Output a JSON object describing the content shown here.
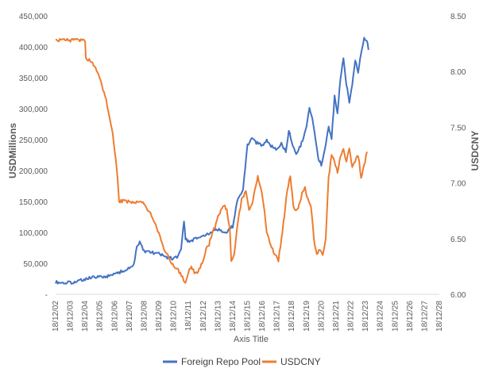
{
  "chart_data": {
    "type": "line",
    "title": "",
    "xlabel": "Axis Title",
    "ylabel_left": "USDMillions",
    "ylabel_right": "USDCNY",
    "grid": false,
    "legend_position": "bottom",
    "x_ticks": [
      "18/12/02",
      "18/12/03",
      "18/12/04",
      "18/12/05",
      "18/12/06",
      "18/12/07",
      "18/12/08",
      "18/12/09",
      "18/12/10",
      "18/12/11",
      "18/12/12",
      "18/12/13",
      "18/12/14",
      "18/12/15",
      "18/12/16",
      "18/12/17",
      "18/12/18",
      "18/12/19",
      "18/12/20",
      "18/12/21",
      "18/12/22",
      "18/12/23",
      "18/12/24",
      "18/12/25",
      "18/12/26",
      "18/12/27",
      "18/12/28"
    ],
    "y_left": {
      "min": 0,
      "max": 450000,
      "ticks": [
        "-",
        "50,000",
        "100,000",
        "150,000",
        "200,000",
        "250,000",
        "300,000",
        "350,000",
        "400,000",
        "450,000"
      ]
    },
    "y_right": {
      "min": 6.0,
      "max": 8.5,
      "ticks": [
        "6.00",
        "6.50",
        "7.00",
        "7.50",
        "8.00",
        "8.50"
      ]
    },
    "series": [
      {
        "name": "Foreign Repo Pool",
        "axis": "left",
        "color": "#4472C4",
        "points": [
          [
            0,
            20000
          ],
          [
            0.5,
            18000
          ],
          [
            1,
            19000
          ],
          [
            1.5,
            21000
          ],
          [
            2,
            25000
          ],
          [
            2.5,
            27000
          ],
          [
            3,
            28000
          ],
          [
            3.5,
            29000
          ],
          [
            4,
            33000
          ],
          [
            4.5,
            37000
          ],
          [
            5,
            42000
          ],
          [
            5.3,
            48000
          ],
          [
            5.5,
            75000
          ],
          [
            5.7,
            85000
          ],
          [
            6,
            70000
          ],
          [
            6.5,
            68000
          ],
          [
            7,
            65000
          ],
          [
            7.5,
            60000
          ],
          [
            8,
            58000
          ],
          [
            8.3,
            60000
          ],
          [
            8.5,
            75000
          ],
          [
            8.7,
            120000
          ],
          [
            8.8,
            90000
          ],
          [
            9,
            85000
          ],
          [
            9.5,
            90000
          ],
          [
            10,
            95000
          ],
          [
            10.5,
            100000
          ],
          [
            11,
            105000
          ],
          [
            11.5,
            100000
          ],
          [
            12,
            110000
          ],
          [
            12.3,
            150000
          ],
          [
            12.7,
            170000
          ],
          [
            13,
            240000
          ],
          [
            13.3,
            255000
          ],
          [
            13.6,
            245000
          ],
          [
            14,
            240000
          ],
          [
            14.3,
            250000
          ],
          [
            14.6,
            240000
          ],
          [
            15,
            235000
          ],
          [
            15.3,
            245000
          ],
          [
            15.6,
            230000
          ],
          [
            15.8,
            265000
          ],
          [
            16,
            245000
          ],
          [
            16.3,
            225000
          ],
          [
            16.6,
            240000
          ],
          [
            17,
            270000
          ],
          [
            17.2,
            300000
          ],
          [
            17.4,
            285000
          ],
          [
            17.6,
            250000
          ],
          [
            17.8,
            220000
          ],
          [
            18,
            210000
          ],
          [
            18.3,
            240000
          ],
          [
            18.5,
            270000
          ],
          [
            18.7,
            250000
          ],
          [
            18.9,
            320000
          ],
          [
            19.1,
            290000
          ],
          [
            19.3,
            350000
          ],
          [
            19.5,
            380000
          ],
          [
            19.7,
            340000
          ],
          [
            19.9,
            310000
          ],
          [
            20.1,
            340000
          ],
          [
            20.3,
            380000
          ],
          [
            20.5,
            360000
          ],
          [
            20.7,
            390000
          ],
          [
            20.9,
            415000
          ],
          [
            21.1,
            410000
          ],
          [
            21.2,
            395000
          ]
        ]
      },
      {
        "name": "USDCNY",
        "axis": "right",
        "color": "#ED7D31",
        "points": [
          [
            0,
            8.28
          ],
          [
            2,
            8.28
          ],
          [
            2.05,
            8.12
          ],
          [
            2.5,
            8.08
          ],
          [
            3,
            7.95
          ],
          [
            3.5,
            7.7
          ],
          [
            3.8,
            7.5
          ],
          [
            4,
            7.3
          ],
          [
            4.2,
            7.05
          ],
          [
            4.3,
            6.83
          ],
          [
            4.5,
            6.84
          ],
          [
            5,
            6.83
          ],
          [
            5.5,
            6.83
          ],
          [
            6,
            6.82
          ],
          [
            6.3,
            6.75
          ],
          [
            6.7,
            6.65
          ],
          [
            7,
            6.55
          ],
          [
            7.3,
            6.42
          ],
          [
            7.6,
            6.35
          ],
          [
            7.8,
            6.28
          ],
          [
            8,
            6.26
          ],
          [
            8.3,
            6.22
          ],
          [
            8.6,
            6.15
          ],
          [
            8.8,
            6.1
          ],
          [
            9,
            6.2
          ],
          [
            9.2,
            6.25
          ],
          [
            9.4,
            6.2
          ],
          [
            9.6,
            6.18
          ],
          [
            9.8,
            6.25
          ],
          [
            10,
            6.3
          ],
          [
            10.2,
            6.4
          ],
          [
            10.4,
            6.45
          ],
          [
            10.6,
            6.55
          ],
          [
            10.8,
            6.6
          ],
          [
            11,
            6.7
          ],
          [
            11.2,
            6.75
          ],
          [
            11.4,
            6.8
          ],
          [
            11.6,
            6.75
          ],
          [
            11.8,
            6.6
          ],
          [
            11.9,
            6.3
          ],
          [
            12.1,
            6.35
          ],
          [
            12.3,
            6.6
          ],
          [
            12.6,
            6.85
          ],
          [
            12.9,
            6.92
          ],
          [
            13.1,
            6.75
          ],
          [
            13.3,
            6.8
          ],
          [
            13.5,
            6.95
          ],
          [
            13.7,
            7.05
          ],
          [
            13.9,
            6.95
          ],
          [
            14.1,
            6.8
          ],
          [
            14.3,
            6.55
          ],
          [
            14.5,
            6.48
          ],
          [
            14.7,
            6.4
          ],
          [
            14.9,
            6.35
          ],
          [
            15.1,
            6.3
          ],
          [
            15.3,
            6.5
          ],
          [
            15.5,
            6.7
          ],
          [
            15.7,
            6.95
          ],
          [
            15.9,
            7.05
          ],
          [
            16.1,
            6.8
          ],
          [
            16.3,
            6.75
          ],
          [
            16.5,
            6.8
          ],
          [
            16.7,
            6.9
          ],
          [
            16.9,
            6.95
          ],
          [
            17.1,
            6.85
          ],
          [
            17.3,
            6.8
          ],
          [
            17.5,
            6.5
          ],
          [
            17.7,
            6.35
          ],
          [
            17.9,
            6.4
          ],
          [
            18.1,
            6.35
          ],
          [
            18.3,
            6.5
          ],
          [
            18.5,
            7.05
          ],
          [
            18.7,
            7.25
          ],
          [
            18.9,
            7.2
          ],
          [
            19.1,
            7.1
          ],
          [
            19.3,
            7.25
          ],
          [
            19.5,
            7.3
          ],
          [
            19.7,
            7.2
          ],
          [
            19.9,
            7.3
          ],
          [
            20.1,
            7.15
          ],
          [
            20.3,
            7.2
          ],
          [
            20.5,
            7.25
          ],
          [
            20.7,
            7.05
          ],
          [
            20.9,
            7.15
          ],
          [
            21.1,
            7.28
          ]
        ]
      }
    ]
  }
}
